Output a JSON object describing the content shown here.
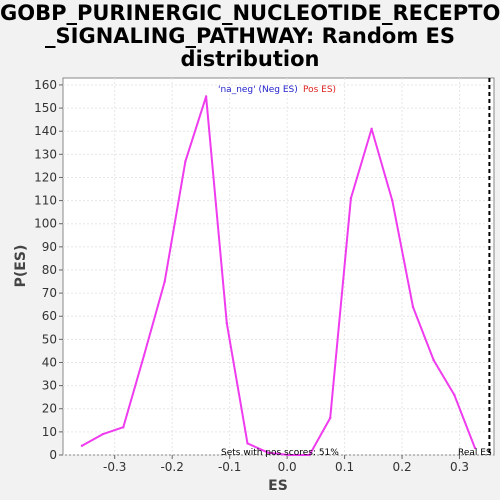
{
  "chart_data": {
    "type": "line",
    "title_lines": [
      "GOBP_PURINERGIC_NUCLEOTIDE_RECEPTOR",
      "_SIGNALING_PATHWAY: Random ES",
      "distribution"
    ],
    "xlabel": "ES",
    "ylabel": "P(ES)",
    "xlim": [
      -0.39,
      0.36
    ],
    "ylim": [
      0,
      163
    ],
    "xticks": [
      -0.3,
      -0.2,
      -0.1,
      0.0,
      0.1,
      0.2,
      0.3
    ],
    "xtick_labels": [
      "-0.3",
      "-0.2",
      "-0.1",
      "0.0",
      "0.1",
      "0.2",
      "0.3"
    ],
    "yticks": [
      0,
      10,
      20,
      30,
      40,
      50,
      60,
      70,
      80,
      90,
      100,
      110,
      120,
      130,
      140,
      150,
      160
    ],
    "ytick_labels": [
      "0",
      "10",
      "20",
      "30",
      "40",
      "50",
      "60",
      "70",
      "80",
      "90",
      "100",
      "110",
      "120",
      "130",
      "140",
      "150",
      "160"
    ],
    "grid": true,
    "series": [
      {
        "color": "#ee3cee",
        "x": [
          -0.357,
          -0.321,
          -0.285,
          -0.249,
          -0.213,
          -0.177,
          -0.141,
          -0.105,
          -0.069,
          -0.033,
          0.003,
          0.039,
          0.075,
          0.111,
          0.147,
          0.183,
          0.219,
          0.255,
          0.291,
          0.327
        ],
        "y": [
          4,
          9,
          12,
          43,
          75,
          127,
          155,
          57,
          5,
          1,
          0,
          0,
          16,
          111,
          141,
          110,
          64,
          41,
          26,
          3
        ]
      }
    ],
    "real_es_x": 0.352,
    "annotations": {
      "neg_label": "'na_neg' (Neg ES)",
      "pos_label": "Pos ES)",
      "pos_scores": "Sets with pos scores: 51%",
      "real_es": "Real ES"
    },
    "colors": {
      "neg_label": "#2222cc",
      "pos_label": "#dd2222",
      "real_es_line": "#000000"
    }
  }
}
